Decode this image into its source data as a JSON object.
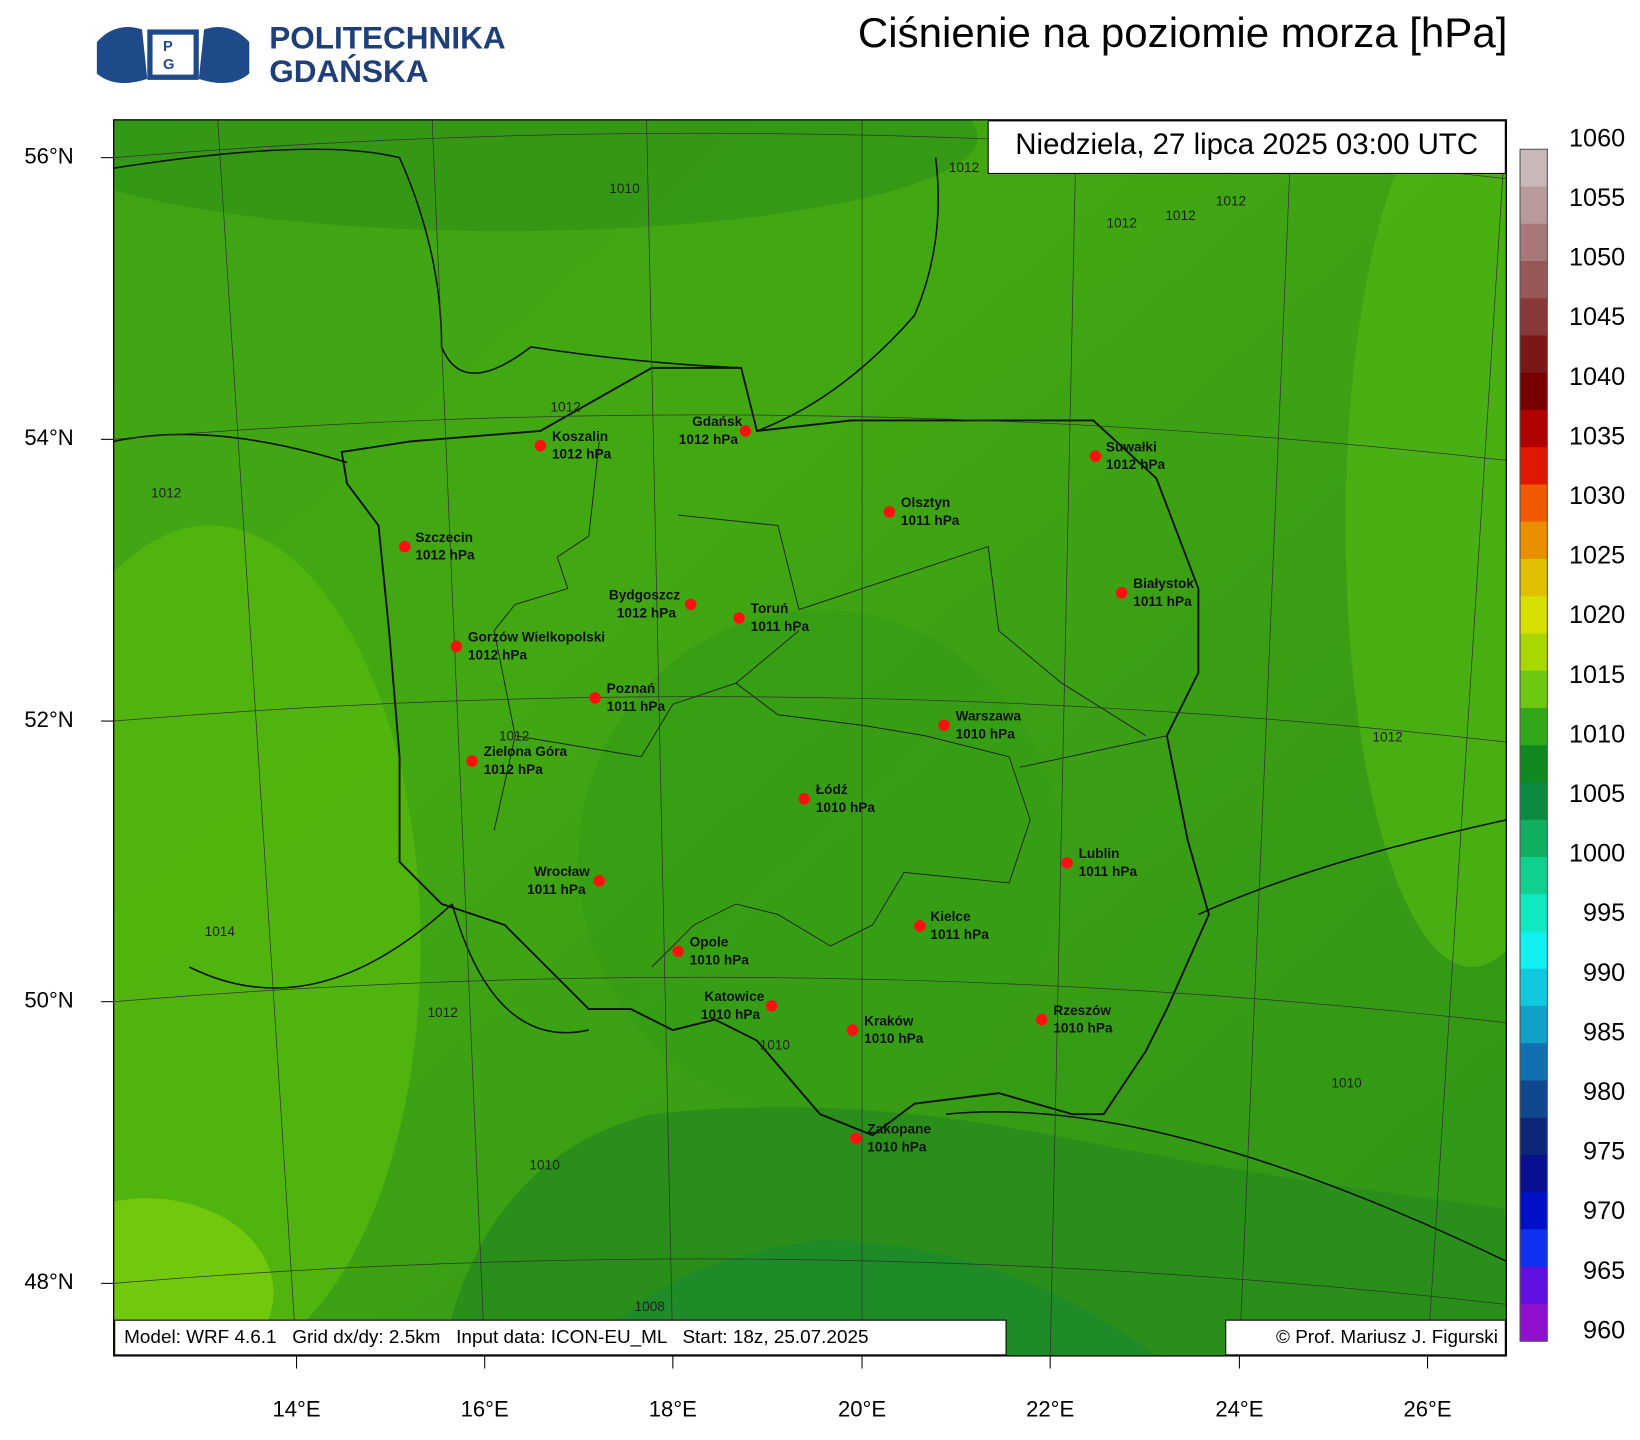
{
  "header": {
    "logo": {
      "letters": [
        "P",
        "G"
      ],
      "name_line1": "POLITECHNIKA",
      "name_line2": "GDAŃSKA"
    },
    "title": "Ciśnienie na poziomie morza [hPa]"
  },
  "map": {
    "valid_time": "Niedziela, 27 lipca 2025 03:00 UTC",
    "footer_left": "Model: WRF 4.6.1   Grid dx/dy: 2.5km   Input data: ICON-EU_ML   Start: 18z, 25.07.2025",
    "footer_right": "© Prof. Mariusz J. Figurski",
    "lat_labels": [
      "56°N",
      "54°N",
      "52°N",
      "50°N",
      "48°N"
    ],
    "lon_labels": [
      "14°E",
      "16°E",
      "18°E",
      "20°E",
      "22°E",
      "24°E",
      "26°E"
    ],
    "contour_labels": [
      "1010",
      "1012",
      "1012",
      "1012",
      "1012",
      "1012",
      "1012",
      "1012",
      "1012",
      "1014",
      "1012",
      "1010",
      "1010",
      "1010",
      "1008"
    ],
    "cities": [
      {
        "name": "Koszalin",
        "pressure": "1012 hPa"
      },
      {
        "name": "Gdańsk",
        "pressure": "1012 hPa"
      },
      {
        "name": "Suwałki",
        "pressure": "1012 hPa"
      },
      {
        "name": "Olsztyn",
        "pressure": "1011 hPa"
      },
      {
        "name": "Szczecin",
        "pressure": "1012 hPa"
      },
      {
        "name": "Bydgoszcz",
        "pressure": "1012 hPa"
      },
      {
        "name": "Toruń",
        "pressure": "1011 hPa"
      },
      {
        "name": "Białystok",
        "pressure": "1011 hPa"
      },
      {
        "name": "Gorzów Wielkopolski",
        "pressure": "1012 hPa"
      },
      {
        "name": "Poznań",
        "pressure": "1011 hPa"
      },
      {
        "name": "Warszawa",
        "pressure": "1010 hPa"
      },
      {
        "name": "Zielona Góra",
        "pressure": "1012 hPa"
      },
      {
        "name": "Łódź",
        "pressure": "1010 hPa"
      },
      {
        "name": "Wrocław",
        "pressure": "1011 hPa"
      },
      {
        "name": "Lublin",
        "pressure": "1011 hPa"
      },
      {
        "name": "Kielce",
        "pressure": "1011 hPa"
      },
      {
        "name": "Opole",
        "pressure": "1010 hPa"
      },
      {
        "name": "Katowice",
        "pressure": "1010 hPa"
      },
      {
        "name": "Kraków",
        "pressure": "1010 hPa"
      },
      {
        "name": "Rzeszów",
        "pressure": "1010 hPa"
      },
      {
        "name": "Zakopane",
        "pressure": "1010 hPa"
      }
    ]
  },
  "colorbar": {
    "labels": [
      "1060",
      "1055",
      "1050",
      "1045",
      "1040",
      "1035",
      "1030",
      "1025",
      "1020",
      "1015",
      "1010",
      "1005",
      "1000",
      "995",
      "990",
      "985",
      "980",
      "975",
      "970",
      "965",
      "960"
    ]
  }
}
